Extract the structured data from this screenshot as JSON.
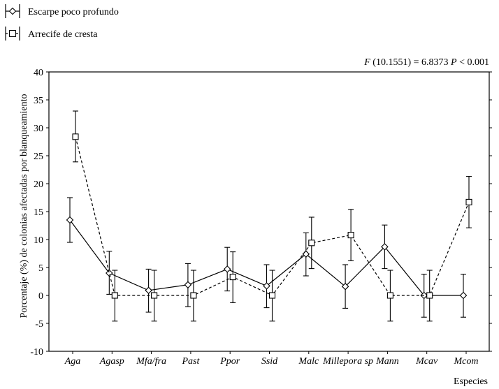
{
  "legend": {
    "items": [
      {
        "label": "Escarpe poco profundo",
        "marker": "diamond",
        "line": "solid"
      },
      {
        "label": "Arrecife de cresta",
        "marker": "square",
        "line": "dashed"
      }
    ]
  },
  "stat": {
    "prefix": "F",
    "text": " (10.1551) = 6.8373 ",
    "p_prefix": "P",
    "p_text": " < 0.001"
  },
  "chart_data": {
    "type": "line",
    "ylabel": "Porcentaje (%) de colonias afectadas por blanqueamiento",
    "xlabel": "Especies",
    "ylim": [
      -10,
      40
    ],
    "yticks": [
      -10,
      -5,
      0,
      5,
      10,
      15,
      20,
      25,
      30,
      35,
      40
    ],
    "categories": [
      "Aga",
      "Agasp",
      "Mfa/fra",
      "Past",
      "Ppor",
      "Ssid",
      "Malc",
      "Millepora sp",
      "Mann",
      "Mcav",
      "Mcom"
    ],
    "series": [
      {
        "name": "Escarpe poco profundo",
        "marker": "diamond",
        "line": "solid",
        "values": [
          13.5,
          4.0,
          0.9,
          1.9,
          4.7,
          1.7,
          7.4,
          1.6,
          8.7,
          0.0,
          0.0
        ],
        "lower": [
          9.5,
          0.2,
          -3.0,
          -2.0,
          0.8,
          -2.2,
          3.5,
          -2.3,
          4.8,
          -3.9,
          -3.9
        ],
        "upper": [
          17.5,
          7.9,
          4.7,
          5.7,
          8.6,
          5.5,
          11.2,
          5.5,
          12.6,
          3.8,
          3.8
        ]
      },
      {
        "name": "Arrecife de cresta",
        "marker": "square",
        "line": "dashed",
        "values": [
          28.4,
          0.0,
          0.0,
          0.0,
          3.3,
          0.0,
          9.4,
          10.8,
          0.0,
          0.0,
          16.7
        ],
        "lower": [
          23.9,
          -4.6,
          -4.6,
          -4.6,
          -1.3,
          -4.6,
          4.8,
          6.2,
          -4.6,
          -4.6,
          12.1
        ],
        "upper": [
          33.0,
          4.5,
          4.5,
          4.5,
          7.8,
          4.5,
          14.0,
          15.4,
          4.5,
          4.5,
          21.3
        ]
      }
    ]
  }
}
